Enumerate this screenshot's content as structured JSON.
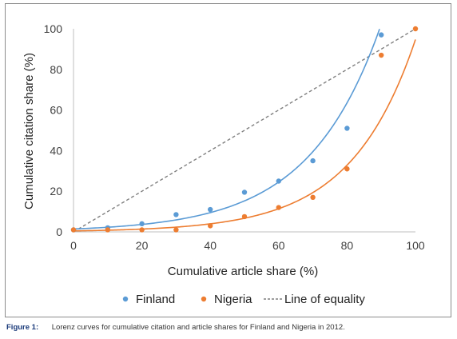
{
  "caption": {
    "label": "Figure 1:",
    "text": "Lorenz curves for cumulative citation and article shares for Finland and Nigeria in 2012."
  },
  "colors": {
    "finland": "#5b9bd5",
    "nigeria": "#ed7d31",
    "equality": "#7f7f7f"
  },
  "chart_data": {
    "type": "scatter",
    "title": "",
    "xlabel": "Cumulative article share (%)",
    "ylabel": "Cumulative citation share (%)",
    "xlim": [
      0,
      100
    ],
    "ylim": [
      0,
      100
    ],
    "xticks": [
      0,
      20,
      40,
      60,
      80,
      100
    ],
    "yticks": [
      0,
      20,
      40,
      60,
      80,
      100
    ],
    "grid": false,
    "legend": "bottom",
    "series": [
      {
        "name": "Finland",
        "points": [
          [
            0,
            1
          ],
          [
            10,
            2
          ],
          [
            20,
            4
          ],
          [
            30,
            8.5
          ],
          [
            40,
            11
          ],
          [
            50,
            19.5
          ],
          [
            60,
            25
          ],
          [
            70,
            35
          ],
          [
            80,
            51
          ],
          [
            90,
            97
          ]
        ],
        "trend": "exponential"
      },
      {
        "name": "Nigeria",
        "points": [
          [
            0,
            1
          ],
          [
            10,
            1
          ],
          [
            20,
            1
          ],
          [
            30,
            1
          ],
          [
            40,
            3
          ],
          [
            50,
            7.5
          ],
          [
            60,
            12
          ],
          [
            70,
            17
          ],
          [
            80,
            31
          ],
          [
            90,
            87
          ],
          [
            100,
            100
          ]
        ],
        "trend": "exponential"
      },
      {
        "name": "Line of equality",
        "line": [
          [
            0,
            0
          ],
          [
            100,
            100
          ]
        ],
        "style": "dashed"
      }
    ]
  }
}
